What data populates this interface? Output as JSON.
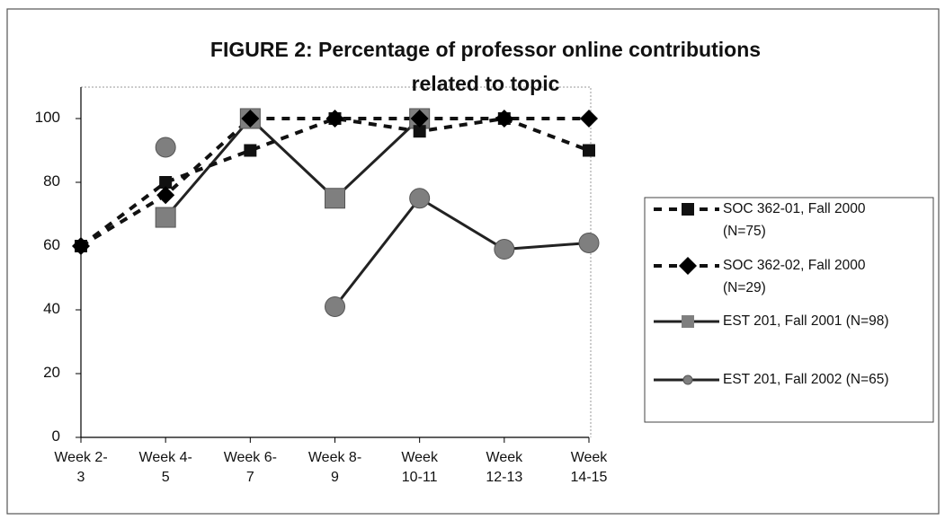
{
  "chart_data": {
    "type": "line",
    "title": "FIGURE 2: Percentage of professor online contributions\nrelated to topic",
    "categories": [
      "Week 2-\n3",
      "Week 4-\n5",
      "Week 6-\n7",
      "Week 8-\n9",
      "Week\n10-11",
      "Week\n12-13",
      "Week\n14-15"
    ],
    "series": [
      {
        "name": "SOC 362-01, Fall 2000\n(N=75)",
        "color": "#111111",
        "line_color": "#111111",
        "dash": true,
        "marker": "square",
        "values": [
          60,
          80,
          90,
          100,
          96,
          100,
          90
        ]
      },
      {
        "name": "SOC 362-02, Fall 2000\n(N=29)",
        "color": "#000000",
        "line_color": "#111111",
        "dash": true,
        "marker": "diamond",
        "values": [
          60,
          76,
          100,
          100,
          100,
          100,
          100
        ]
      },
      {
        "name": "EST 201, Fall 2001 (N=98)",
        "color": "#7f7f7f",
        "line_color": "#222222",
        "dash": false,
        "marker": "bigsquare",
        "values": [
          null,
          69,
          100,
          75,
          100,
          null,
          null
        ]
      },
      {
        "name": "EST 201, Fall 2002 (N=65)",
        "color": "#7f7f7f",
        "line_color": "#222222",
        "dash": false,
        "marker": "circle",
        "values": [
          null,
          91,
          null,
          41,
          75,
          59,
          61
        ]
      }
    ],
    "ylim": [
      0,
      100
    ],
    "yticks": [
      0,
      20,
      40,
      60,
      80,
      100
    ],
    "grid": false,
    "legend": "right"
  }
}
